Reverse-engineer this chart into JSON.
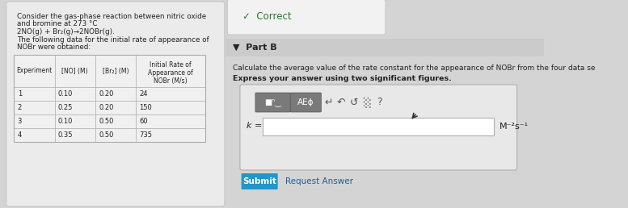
{
  "bg_color": "#d4d4d4",
  "left_card_bg": "#ebebeb",
  "left_card_edge": "#c8c8c8",
  "right_bg": "#d4d4d4",
  "correct_box_bg": "#f2f2f2",
  "correct_box_edge": "#c8c8c8",
  "part_b_bg": "#cbcbcb",
  "input_area_bg": "#e8e8e8",
  "input_area_edge": "#b0b0b0",
  "toolbar_dark_bg": "#7a7a7a",
  "toolbar_light_bg": "#aaaaaa",
  "input_box_bg": "#ffffff",
  "input_box_edge": "#b0b0b0",
  "submit_btn_bg": "#2196c8",
  "table_bg": "#f0f0f0",
  "table_edge": "#aaaaaa",
  "text_dark": "#222222",
  "text_mid": "#444444",
  "correct_green": "#2a7a2a",
  "link_blue": "#1a5fa0",
  "left_text_lines": [
    "Consider the gas-phase reaction between nitric oxide",
    "and bromine at 273 °C",
    "2NO(g) + Br₂(g)→2NOBr(g).",
    "The following data for the initial rate of appearance of",
    "NOBr were obtained:"
  ],
  "table_header_col4_lines": [
    "Initial Rate of",
    "Appearance of",
    "NOBr (M/s)"
  ],
  "table_header_col1": "Experiment",
  "table_header_col2": "[NO] (M)",
  "table_header_col3": "[Br₂] (M)",
  "table_data": [
    [
      "1",
      "0.10",
      "0.20",
      "24"
    ],
    [
      "2",
      "0.25",
      "0.20",
      "150"
    ],
    [
      "3",
      "0.10",
      "0.50",
      "60"
    ],
    [
      "4",
      "0.35",
      "0.50",
      "735"
    ]
  ],
  "correct_text_check": "✓",
  "correct_text_label": "Correct",
  "part_b_arrow": "▼",
  "part_b_label": "Part B",
  "calc_line1": "Calculate the average value of the rate constant for the appearance of NOBr from the four data se",
  "calc_line2": "Express your answer using two significant figures.",
  "k_label": "k =",
  "unit_label": "M⁻²s⁻¹",
  "submit_text": "Submit",
  "request_answer_text": "Request Answer",
  "toolbar_btn1": "■ⁿ‿",
  "toolbar_btn2": "AEϕ"
}
